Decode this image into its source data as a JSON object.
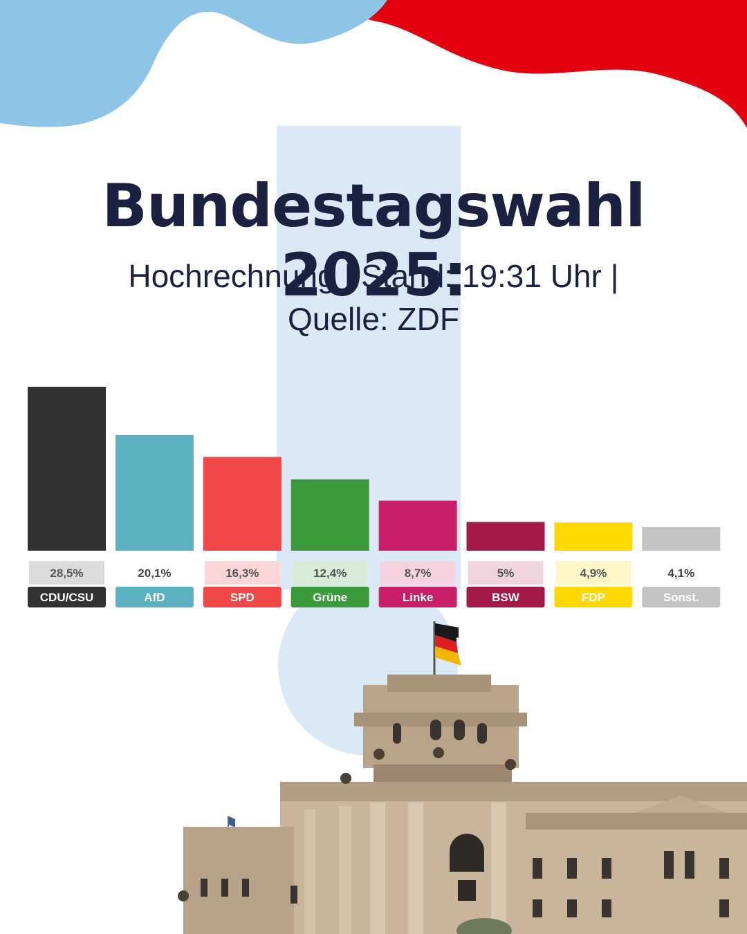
{
  "title": "Bundestagswahl 2025:",
  "subtitle_line1": "Hochrechnung | Stand: 19:31 Uhr |",
  "subtitle_line2": "Quelle: ZDF",
  "colors": {
    "background": "#ffffff",
    "title": "#1b2140",
    "blob_blue": "#8ec4e6",
    "blob_red": "#e3000f",
    "exclamation": "#dbe8f5"
  },
  "chart_data": {
    "type": "bar",
    "unit": "%",
    "categories": [
      "CDU/CSU",
      "AfD",
      "SPD",
      "Grüne",
      "Linke",
      "BSW",
      "FDP",
      "Sonst."
    ],
    "values": [
      28.5,
      20.1,
      16.3,
      12.4,
      8.7,
      5,
      4.9,
      4.1
    ],
    "value_labels": [
      "28,5%",
      "20,1%",
      "16,3%",
      "12,4%",
      "8,7%",
      "5%",
      "4,9%",
      "4,1%"
    ],
    "bar_colors": [
      "#333333",
      "#5bb1bf",
      "#f04848",
      "#3a9a3a",
      "#c72068",
      "#a3194a",
      "#ffd900",
      "#c4c4c4"
    ],
    "label_bg_colors": [
      "#dcdcdc",
      "#ffffff",
      "#fbd6d6",
      "#d9ecd8",
      "#f5d2e0",
      "#f0d5dd",
      "#fff6c8",
      "#ffffff"
    ],
    "value_text_colors": [
      "#555555",
      "#444444",
      "#555555",
      "#555555",
      "#555555",
      "#555555",
      "#555555",
      "#444444"
    ],
    "ylim": [
      0,
      30
    ]
  }
}
